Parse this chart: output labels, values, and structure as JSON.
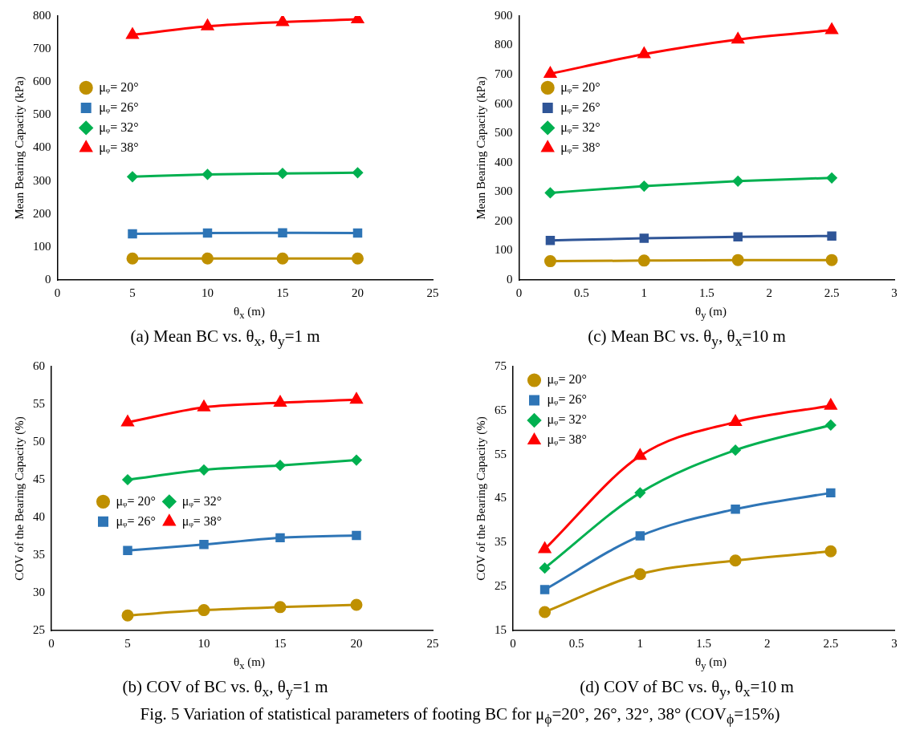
{
  "chart_data": [
    {
      "type": "line",
      "title": "(a) Mean BC vs. θ$_{x}$, θ$_{y}$=1 m",
      "xlabel": "θ$_{x}$ (m)",
      "ylabel": "Mean Bearing Capacity (kPa)",
      "x": [
        5,
        10,
        15,
        20
      ],
      "xlim": [
        0,
        25
      ],
      "xticks": [
        0,
        5,
        10,
        15,
        20,
        25
      ],
      "ylim": [
        0,
        800
      ],
      "yticks": [
        0,
        100,
        200,
        300,
        400,
        500,
        600,
        700,
        800
      ],
      "grid": false,
      "legend": "left",
      "series": [
        {
          "name": "μᵩ= 20°",
          "color": "#bf9000",
          "marker": "circle",
          "values": [
            65,
            65,
            65,
            65
          ]
        },
        {
          "name": "μᵩ= 26°",
          "color": "#2e75b6",
          "marker": "square",
          "values": [
            140,
            142,
            143,
            142
          ]
        },
        {
          "name": "μᵩ= 32°",
          "color": "#00b050",
          "marker": "diamond",
          "values": [
            313,
            320,
            323,
            325
          ]
        },
        {
          "name": "μᵩ= 38°",
          "color": "#ff0000",
          "marker": "triangle",
          "values": [
            743,
            769,
            782,
            790
          ]
        }
      ]
    },
    {
      "type": "line",
      "title": "(c) Mean BC vs. θ$_{y}$, θ$_{x}$=10 m",
      "xlabel": "θ$_{y}$ (m)",
      "ylabel": "Mean Bearing Capacity (kPa)",
      "x": [
        0.25,
        1,
        1.75,
        2.5
      ],
      "xlim": [
        0,
        3
      ],
      "xticks": [
        0,
        0.5,
        1,
        1.5,
        2,
        2.5,
        3
      ],
      "ylim": [
        0,
        900
      ],
      "yticks": [
        0,
        100,
        200,
        300,
        400,
        500,
        600,
        700,
        800,
        900
      ],
      "grid": false,
      "legend": "left",
      "series": [
        {
          "name": "μᵩ= 20°",
          "color": "#bf9000",
          "marker": "circle",
          "values": [
            64,
            66,
            68,
            68
          ]
        },
        {
          "name": "μᵩ= 26°",
          "color": "#2f5597",
          "marker": "square",
          "values": [
            135,
            142,
            147,
            150
          ]
        },
        {
          "name": "μᵩ= 32°",
          "color": "#00b050",
          "marker": "diamond",
          "values": [
            297,
            320,
            337,
            348
          ]
        },
        {
          "name": "μᵩ= 38°",
          "color": "#ff0000",
          "marker": "triangle",
          "values": [
            703,
            770,
            820,
            852
          ]
        }
      ]
    },
    {
      "type": "line",
      "title": "(b) COV of BC vs. θ$_{x}$, θ$_{y}$=1 m",
      "xlabel": "θ$_{x}$ (m)",
      "ylabel": "COV of the Bearing Capacity (%)",
      "x": [
        5,
        10,
        15,
        20
      ],
      "xlim": [
        0,
        25
      ],
      "xticks": [
        0,
        5,
        10,
        15,
        20,
        25
      ],
      "ylim": [
        25,
        60
      ],
      "yticks": [
        25,
        30,
        35,
        40,
        45,
        50,
        55,
        60
      ],
      "grid": false,
      "legend": "center",
      "series": [
        {
          "name": "μᵩ= 20°",
          "color": "#bf9000",
          "marker": "circle",
          "values": [
            27.0,
            27.7,
            28.1,
            28.4
          ]
        },
        {
          "name": "μᵩ= 26°",
          "color": "#2e75b6",
          "marker": "square",
          "values": [
            35.6,
            36.4,
            37.3,
            37.6
          ]
        },
        {
          "name": "μᵩ= 32°",
          "color": "#00b050",
          "marker": "diamond",
          "values": [
            45.0,
            46.3,
            46.9,
            47.6
          ]
        },
        {
          "name": "μᵩ= 38°",
          "color": "#ff0000",
          "marker": "triangle",
          "values": [
            52.6,
            54.6,
            55.2,
            55.6
          ]
        }
      ]
    },
    {
      "type": "line",
      "title": "(d) COV of BC vs. θ$_{y}$, θ$_{x}$=10 m",
      "xlabel": "θ$_{y}$ (m)",
      "ylabel": "COV of the Bearing Capacity (%)",
      "x": [
        0.25,
        1,
        1.75,
        2.5
      ],
      "xlim": [
        0,
        3
      ],
      "xticks": [
        0,
        0.5,
        1,
        1.5,
        2,
        2.5,
        3
      ],
      "ylim": [
        15,
        75
      ],
      "yticks": [
        15,
        25,
        35,
        45,
        55,
        65,
        75
      ],
      "grid": false,
      "legend": "top left",
      "annotations": [
        "Fig. 5 Variation of statistical parameters of footing BC for μ$_{ϕ}$=20°, 26°, 32°, 38° (COV$_{ϕ}$=15%)"
      ],
      "series": [
        {
          "name": "μᵩ= 20°",
          "color": "#bf9000",
          "marker": "circle",
          "values": [
            19.2,
            27.8,
            30.9,
            33.0
          ]
        },
        {
          "name": "μᵩ= 26°",
          "color": "#2e75b6",
          "marker": "square",
          "values": [
            24.3,
            36.5,
            42.6,
            46.3
          ]
        },
        {
          "name": "μᵩ= 32°",
          "color": "#00b050",
          "marker": "diamond",
          "values": [
            29.2,
            46.3,
            56.0,
            61.7
          ]
        },
        {
          "name": "μᵩ= 38°",
          "color": "#ff0000",
          "marker": "triangle",
          "values": [
            33.5,
            54.7,
            62.4,
            66.1
          ]
        }
      ]
    }
  ]
}
